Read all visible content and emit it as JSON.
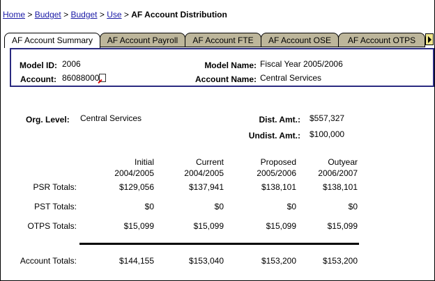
{
  "breadcrumb": {
    "links": [
      "Home",
      "Budget",
      "Budget",
      "Use"
    ],
    "current": "AF Account Distribution",
    "separator": ">"
  },
  "tabs": [
    "AF Account Summary",
    "AF Account Payroll",
    "AF Account FTE",
    "AF Account OSE",
    "AF Account OTPS"
  ],
  "active_tab": "AF Account Summary",
  "header": {
    "model_id_label": "Model ID:",
    "model_id": "2006",
    "model_name_label": "Model Name:",
    "model_name": "Fiscal Year 2005/2006",
    "account_label": "Account:",
    "account": "86088000",
    "account_name_label": "Account Name:",
    "account_name": "Central Services"
  },
  "summary": {
    "org_level_label": "Org. Level:",
    "org_level": "Central Services",
    "dist_label": "Dist. Amt.:",
    "dist": "$557,327",
    "undist_label": "Undist. Amt.:",
    "undist": "$100,000"
  },
  "table": {
    "columns": [
      {
        "l1": "Initial",
        "l2": "2004/2005"
      },
      {
        "l1": "Current",
        "l2": "2004/2005"
      },
      {
        "l1": "Proposed",
        "l2": "2005/2006"
      },
      {
        "l1": "Outyear",
        "l2": "2006/2007"
      }
    ],
    "rows": [
      {
        "label": "PSR Totals:",
        "values": [
          "$129,056",
          "$137,941",
          "$138,101",
          "$138,101"
        ]
      },
      {
        "label": "PST Totals:",
        "values": [
          "$0",
          "$0",
          "$0",
          "$0"
        ]
      },
      {
        "label": "OTPS Totals:",
        "values": [
          "$15,099",
          "$15,099",
          "$15,099",
          "$15,099"
        ]
      },
      {
        "label": "Account Totals:",
        "values": [
          "$144,155",
          "$153,040",
          "$153,200",
          "$153,200"
        ]
      }
    ]
  },
  "colors": {
    "tab": "#bdb69b",
    "box_border": "#2a2a80",
    "link": "#1a1aa6"
  }
}
